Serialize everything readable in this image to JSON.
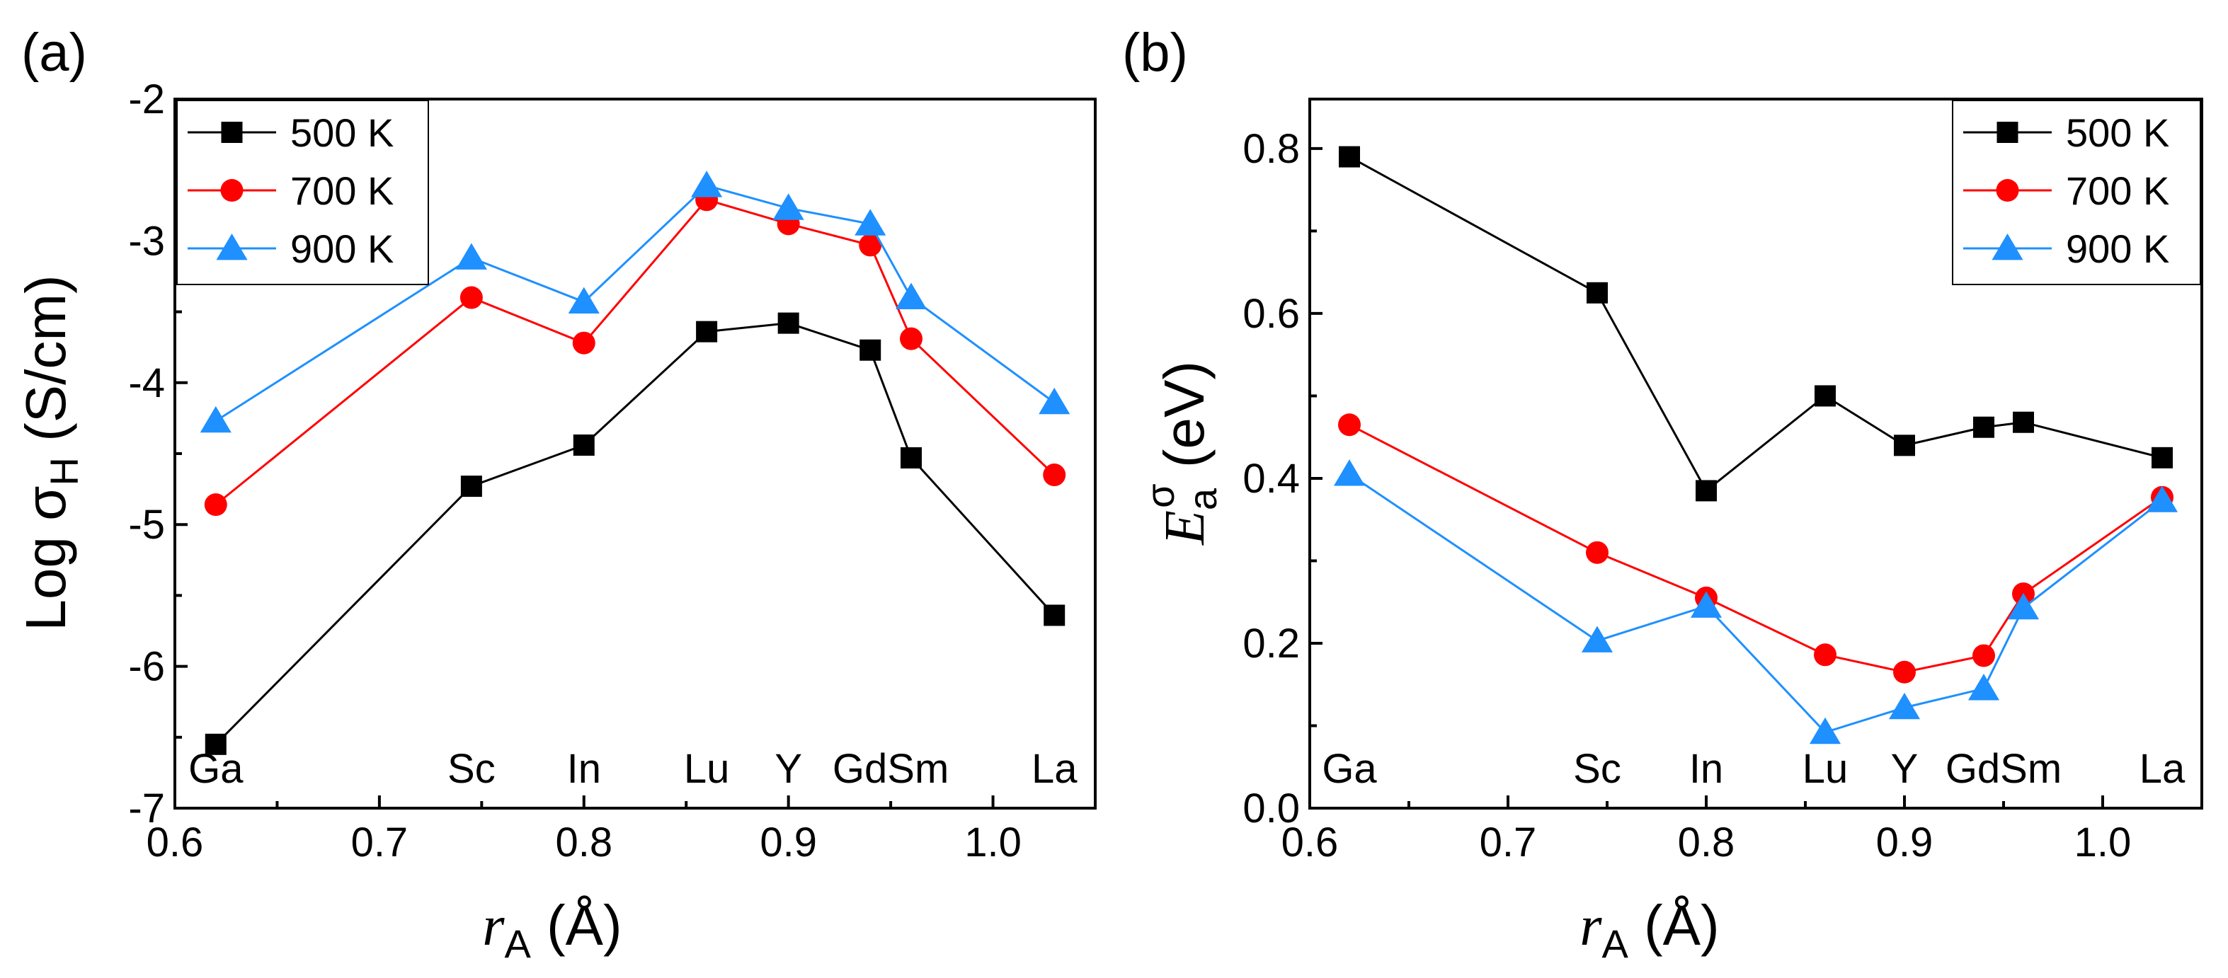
{
  "chart_data": [
    {
      "type": "line",
      "panel_label": "(a)",
      "xlabel_main": "r",
      "xlabel_sub": "A",
      "xlabel_unit": " (Å)",
      "ylabel_main": "Log σ",
      "ylabel_sub": "H",
      "ylabel_unit": " (S/cm)",
      "xlim": [
        0.6,
        1.05
      ],
      "ylim": [
        -7,
        -2
      ],
      "xticks": [
        0.6,
        0.7,
        0.8,
        0.9,
        1.0
      ],
      "xtick_labels": [
        "0.6",
        "0.7",
        "0.8",
        "0.9",
        "1.0"
      ],
      "yticks": [
        -7,
        -6,
        -5,
        -4,
        -3,
        -2
      ],
      "ytick_labels": [
        "-7",
        "-6",
        "-5",
        "-4",
        "-3",
        "-2"
      ],
      "x": [
        0.62,
        0.745,
        0.8,
        0.86,
        0.9,
        0.94,
        0.96,
        1.03
      ],
      "element_labels": [
        {
          "text": "Ga",
          "x": 0.62
        },
        {
          "text": "Sc",
          "x": 0.745
        },
        {
          "text": "In",
          "x": 0.8
        },
        {
          "text": "Lu",
          "x": 0.86
        },
        {
          "text": "Y",
          "x": 0.9
        },
        {
          "text": "GdSm",
          "x": 0.95
        },
        {
          "text": "La",
          "x": 1.03
        }
      ],
      "legend_position": "top-left",
      "series": [
        {
          "name": "500 K",
          "marker": "square",
          "color": "#000000",
          "values": [
            -6.55,
            -4.73,
            -4.44,
            -3.64,
            -3.58,
            -3.77,
            -4.53,
            -5.64
          ]
        },
        {
          "name": "700 K",
          "marker": "circle",
          "color": "#ff0000",
          "values": [
            -4.86,
            -3.4,
            -3.72,
            -2.71,
            -2.88,
            -3.03,
            -3.69,
            -4.65
          ]
        },
        {
          "name": "900 K",
          "marker": "triangle",
          "color": "#1e90ff",
          "values": [
            -4.27,
            -3.12,
            -3.43,
            -2.61,
            -2.77,
            -2.88,
            -3.4,
            -4.14
          ]
        }
      ]
    },
    {
      "type": "line",
      "panel_label": "(b)",
      "xlabel_main": "r",
      "xlabel_sub": "A",
      "xlabel_unit": " (Å)",
      "ylabel_main": "E",
      "ylabel_sub": "a",
      "ylabel_sup": "σ",
      "ylabel_unit": " (eV)",
      "xlim": [
        0.6,
        1.05
      ],
      "ylim": [
        0.0,
        0.86
      ],
      "xticks": [
        0.6,
        0.7,
        0.8,
        0.9,
        1.0
      ],
      "xtick_labels": [
        "0.6",
        "0.7",
        "0.8",
        "0.9",
        "1.0"
      ],
      "yticks": [
        0.0,
        0.2,
        0.4,
        0.6,
        0.8
      ],
      "ytick_labels": [
        "0.0",
        "0.2",
        "0.4",
        "0.6",
        "0.8"
      ],
      "x": [
        0.62,
        0.745,
        0.8,
        0.86,
        0.9,
        0.94,
        0.96,
        1.03
      ],
      "element_labels": [
        {
          "text": "Ga",
          "x": 0.62
        },
        {
          "text": "Sc",
          "x": 0.745
        },
        {
          "text": "In",
          "x": 0.8
        },
        {
          "text": "Lu",
          "x": 0.86
        },
        {
          "text": "Y",
          "x": 0.9
        },
        {
          "text": "GdSm",
          "x": 0.95
        },
        {
          "text": "La",
          "x": 1.03
        }
      ],
      "legend_position": "top-right",
      "series": [
        {
          "name": "500 K",
          "marker": "square",
          "color": "#000000",
          "values": [
            0.79,
            0.625,
            0.385,
            0.5,
            0.44,
            0.462,
            0.468,
            0.425
          ]
        },
        {
          "name": "700 K",
          "marker": "circle",
          "color": "#ff0000",
          "values": [
            0.465,
            0.31,
            0.255,
            0.186,
            0.165,
            0.185,
            0.26,
            0.377
          ]
        },
        {
          "name": "900 K",
          "marker": "triangle",
          "color": "#1e90ff",
          "values": [
            0.405,
            0.203,
            0.245,
            0.092,
            0.122,
            0.145,
            0.243,
            0.373
          ]
        }
      ]
    }
  ]
}
